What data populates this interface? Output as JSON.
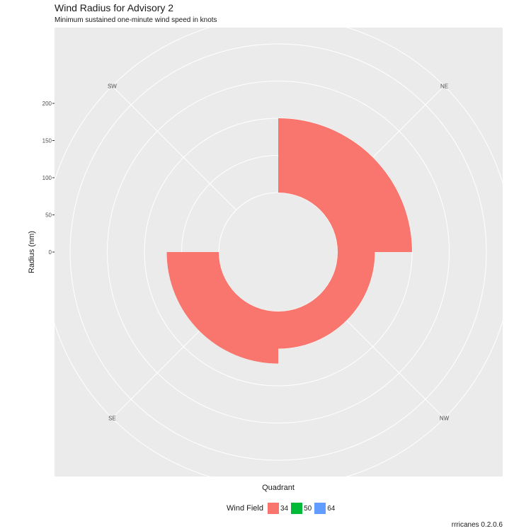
{
  "chart_data": {
    "type": "polar-bar",
    "title": "Wind Radius for Advisory 2",
    "subtitle": "Minimum sustained one-minute wind speed in knots",
    "xlabel": "Quadrant",
    "ylabel": "Radius (nm)",
    "quadrants": [
      "NE",
      "SE",
      "SW",
      "NW"
    ],
    "y_ticks": [
      0,
      50,
      100,
      150,
      200
    ],
    "y_range": [
      -80,
      235
    ],
    "legend_title": "Wind Field",
    "legend": [
      {
        "label": "34",
        "color": "#F8766D"
      },
      {
        "label": "50",
        "color": "#00BA38"
      },
      {
        "label": "64",
        "color": "#619CFF"
      }
    ],
    "series": [
      {
        "name": "34",
        "color": "#F8766D",
        "values": {
          "NE": 100,
          "SE": 70,
          "SW": 0,
          "NW": 50
        }
      }
    ],
    "caption": "rrricanes 0.2.0.6"
  }
}
